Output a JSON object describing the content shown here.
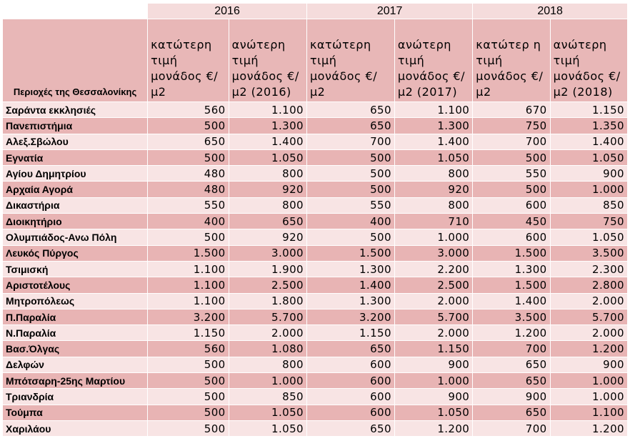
{
  "years": [
    "2016",
    "2017",
    "2018"
  ],
  "headers": {
    "region": "Περιοχές της Θεσσαλονίκης",
    "cols": [
      "κατώτερη τιμή μονάδος €/μ2",
      "ανώτερη τιμή μονάδος €/μ2 (2016)",
      "κατώτερη τιμή μονάδος €/μ2",
      "ανώτερη τιμή μονάδος €/μ2 (2017)",
      "κατώτερ η τιμή μονάδος €/μ2",
      "ανώτερη τιμή μονάδος €/μ2 (2018)"
    ]
  },
  "rows": [
    {
      "name": "Σαράντα εκκλησιές",
      "v": [
        "560",
        "1.100",
        "650",
        "1.100",
        "670",
        "1.150"
      ]
    },
    {
      "name": "Πανεπιστήμια",
      "v": [
        "500",
        "1.300",
        "650",
        "1.300",
        "750",
        "1.350"
      ]
    },
    {
      "name": "Αλεξ.Σβώλου",
      "v": [
        "650",
        "1.400",
        "700",
        "1.400",
        "700",
        "1.400"
      ]
    },
    {
      "name": "Εγνατία",
      "v": [
        "500",
        "1.050",
        "500",
        "1.050",
        "500",
        "1.050"
      ]
    },
    {
      "name": "Αγίου Δημητρίου",
      "v": [
        "480",
        "800",
        "500",
        "800",
        "550",
        "900"
      ]
    },
    {
      "name": "Αρχαία Αγορά",
      "v": [
        "480",
        "920",
        "500",
        "920",
        "500",
        "1.000"
      ]
    },
    {
      "name": "Δικαστήρια",
      "v": [
        "550",
        "800",
        "550",
        "800",
        "600",
        "850"
      ]
    },
    {
      "name": "Διοικητήριο",
      "v": [
        "400",
        "650",
        "400",
        "710",
        "450",
        "750"
      ]
    },
    {
      "name": "Ολυμπιάδος-Ανω Πόλη",
      "v": [
        "500",
        "920",
        "500",
        "1.000",
        "600",
        "1.050"
      ]
    },
    {
      "name": "Λευκός Πύργος",
      "v": [
        "1.500",
        "3.000",
        "1.500",
        "3.000",
        "1.500",
        "3.500"
      ]
    },
    {
      "name": "Τσιμισκή",
      "v": [
        "1.100",
        "1.900",
        "1.300",
        "2.200",
        "1.300",
        "2.300"
      ]
    },
    {
      "name": "Αριστοτέλους",
      "v": [
        "1.100",
        "2.500",
        "1.400",
        "2.500",
        "1.500",
        "2.800"
      ]
    },
    {
      "name": "Μητροπόλεως",
      "v": [
        "1.100",
        "1.800",
        "1.300",
        "2.000",
        "1.400",
        "2.000"
      ]
    },
    {
      "name": "Π.Παραλία",
      "v": [
        "3.200",
        "5.700",
        "3.200",
        "5.700",
        "3.500",
        "5.700"
      ]
    },
    {
      "name": "Ν.Παραλία",
      "v": [
        "1.150",
        "2.000",
        "1.150",
        "2.000",
        "1.200",
        "2.000"
      ]
    },
    {
      "name": "Βασ.Όλγας",
      "v": [
        "560",
        "1.080",
        "650",
        "1.150",
        "700",
        "1.200"
      ]
    },
    {
      "name": "Δελφών",
      "v": [
        "500",
        "800",
        "600",
        "900",
        "650",
        "900"
      ]
    },
    {
      "name": "Μπότσαρη-25ης Μαρτίου",
      "v": [
        "500",
        "1.000",
        "600",
        "1.000",
        "650",
        "1.000"
      ]
    },
    {
      "name": "Τριανδρία",
      "v": [
        "500",
        "850",
        "600",
        "900",
        "900",
        "1.000"
      ]
    },
    {
      "name": "Τούμπα",
      "v": [
        "500",
        "1.050",
        "600",
        "1.050",
        "650",
        "1.100"
      ]
    },
    {
      "name": "Χαριλάου",
      "v": [
        "500",
        "1.050",
        "650",
        "1.200",
        "700",
        "1.200"
      ]
    }
  ]
}
